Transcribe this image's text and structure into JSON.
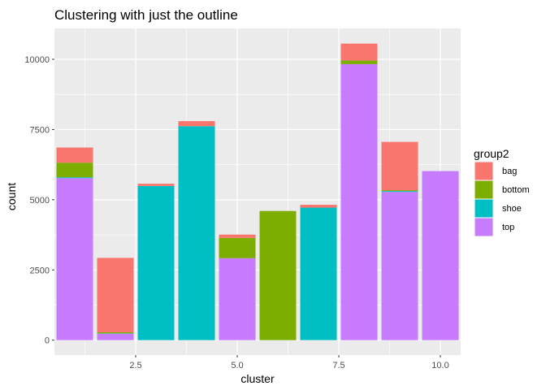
{
  "chart_data": {
    "type": "bar",
    "stacked": true,
    "title": "Clustering with just the outline",
    "xlabel": "cluster",
    "ylabel": "count",
    "xlim": [
      0.5,
      10.5
    ],
    "ylim": [
      -530,
      11100
    ],
    "x_ticks": [
      2.5,
      5.0,
      7.5,
      10.0
    ],
    "x_tick_labels": [
      "2.5",
      "5.0",
      "7.5",
      "10.0"
    ],
    "y_ticks": [
      0,
      2500,
      5000,
      7500,
      10000
    ],
    "y_tick_labels": [
      "0",
      "2500",
      "5000",
      "7500",
      "10000"
    ],
    "grid": true,
    "legend": {
      "title": "group2",
      "placement": "right",
      "entries": [
        "bag",
        "bottom",
        "shoe",
        "top"
      ]
    },
    "colors": {
      "bag": "#F8766D",
      "bottom": "#7CAE00",
      "shoe": "#00BFC4",
      "top": "#C77CFF",
      "panel": "#EBEBEB"
    },
    "stack_order_bottom_to_top": [
      "top",
      "shoe",
      "bottom",
      "bag"
    ],
    "x": [
      1,
      2,
      3,
      4,
      5,
      6,
      7,
      8,
      9,
      10
    ],
    "series": [
      {
        "name": "top",
        "values": [
          5770,
          230,
          0,
          0,
          2920,
          0,
          0,
          9830,
          5280,
          6020
        ]
      },
      {
        "name": "shoe",
        "values": [
          30,
          10,
          5490,
          7620,
          0,
          0,
          4720,
          0,
          30,
          0
        ]
      },
      {
        "name": "bottom",
        "values": [
          520,
          40,
          0,
          0,
          720,
          4600,
          0,
          130,
          30,
          0
        ]
      },
      {
        "name": "bag",
        "values": [
          540,
          2650,
          80,
          180,
          120,
          0,
          100,
          600,
          1720,
          0
        ]
      }
    ]
  }
}
